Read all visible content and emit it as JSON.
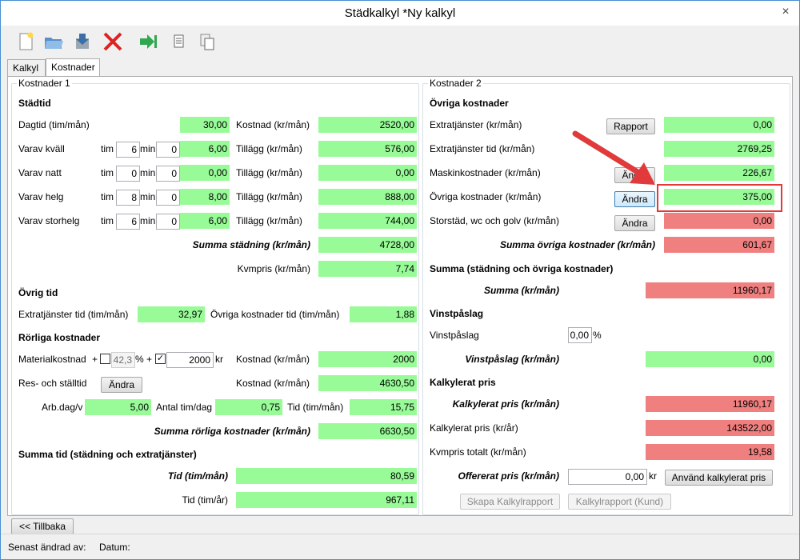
{
  "window": {
    "title": "Städkalkyl *Ny kalkyl",
    "close": "×"
  },
  "tabs": [
    "Kalkyl",
    "Kostnader"
  ],
  "left": {
    "group_title": "Kostnader 1",
    "stadtid": {
      "heading": "Städtid",
      "dagtid_label": "Dagtid (tim/mån)",
      "dagtid_value": "30,00",
      "kostnad_label": "Kostnad (kr/mån)",
      "kostnad_value": "2520,00",
      "tim": "tim",
      "min": "min",
      "tillagg_label": "Tillägg (kr/mån)",
      "rows": [
        {
          "label": "Varav kväll",
          "tim": "6",
          "min": "0",
          "hours": "6,00",
          "tillagg": "576,00"
        },
        {
          "label": "Varav natt",
          "tim": "0",
          "min": "0",
          "hours": "0,00",
          "tillagg": "0,00"
        },
        {
          "label": "Varav helg",
          "tim": "8",
          "min": "0",
          "hours": "8,00",
          "tillagg": "888,00"
        },
        {
          "label": "Varav storhelg",
          "tim": "6",
          "min": "0",
          "hours": "6,00",
          "tillagg": "744,00"
        }
      ],
      "summa_label": "Summa städning (kr/mån)",
      "summa_value": "4728,00",
      "kvmpris_label": "Kvmpris (kr/mån)",
      "kvmpris_value": "7,74"
    },
    "ovrig_tid": {
      "heading": "Övrig tid",
      "extra_label": "Extratjänster tid (tim/mån)",
      "extra_value": "32,97",
      "ovriga_label": "Övriga kostnader tid (tim/mån)",
      "ovriga_value": "1,88"
    },
    "rorliga": {
      "heading": "Rörliga kostnader",
      "material_label": "Materialkostnad",
      "plus": "+",
      "percent_value": "42,3",
      "percent_sign": "%",
      "check_mark": "✓",
      "amount_value": "2000",
      "kr": "kr",
      "kostnad_label": "Kostnad (kr/mån)",
      "kostnad_value": "2000",
      "res_label": "Res- och ställtid",
      "andra": "Ändra",
      "kostnad2_value": "4630,50",
      "arbdag_label": "Arb.dag/v",
      "arbdag_value": "5,00",
      "antal_label": "Antal tim/dag",
      "antal_value": "0,75",
      "tid_label": "Tid (tim/mån)",
      "tid_value": "15,75",
      "summa_label": "Summa rörliga kostnader (kr/mån)",
      "summa_value": "6630,50"
    },
    "summa_tid": {
      "heading": "Summa tid (städning och extratjänster)",
      "tid_man_label": "Tid (tim/mån)",
      "tid_man_value": "80,59",
      "tid_ar_label": "Tid (tim/år)",
      "tid_ar_value": "967,11"
    }
  },
  "right": {
    "group_title": "Kostnader 2",
    "ovriga": {
      "heading": "Övriga kostnader",
      "rows": [
        {
          "label": "Extratjänster (kr/mån)",
          "button": "Rapport",
          "value": "0,00",
          "color": "green"
        },
        {
          "label": "Extratjänster tid (kr/mån)",
          "button": "",
          "value": "2769,25",
          "color": "green"
        },
        {
          "label": "Maskinkostnader (kr/mån)",
          "button": "Ändra",
          "value": "226,67",
          "color": "green"
        },
        {
          "label": "Övriga kostnader (kr/mån)",
          "button": "Ändra",
          "value": "375,00",
          "color": "green"
        },
        {
          "label": "Storstäd, wc och golv (kr/mån)",
          "button": "Ändra",
          "value": "0,00",
          "color": "red"
        }
      ],
      "summa_label": "Summa övriga kostnader (kr/mån)",
      "summa_value": "601,67"
    },
    "summa_all": {
      "heading": "Summa (städning och övriga kostnader)",
      "label": "Summa (kr/mån)",
      "value": "11960,17"
    },
    "vinst": {
      "heading": "Vinstpåslag",
      "label": "Vinstpåslag",
      "input_value": "0,00",
      "percent": "%",
      "sum_label": "Vinstpåslag (kr/mån)",
      "sum_value": "0,00"
    },
    "kalkylerat": {
      "heading": "Kalkylerat pris",
      "man_label": "Kalkylerat pris (kr/mån)",
      "man_value": "11960,17",
      "ar_label": "Kalkylerat pris (kr/år)",
      "ar_value": "143522,00",
      "kvm_label": "Kvmpris totalt (kr/mån)",
      "kvm_value": "19,58",
      "offer_label": "Offererat pris (kr/mån)",
      "offer_value": "0,00",
      "kr": "kr",
      "use_button": "Använd kalkylerat pris"
    },
    "buttons": {
      "skapa": "Skapa Kalkylrapport",
      "kund": "Kalkylrapport (Kund)"
    }
  },
  "back_button": "<< Tillbaka",
  "status": {
    "senast": "Senast ändrad av:",
    "datum": "Datum:"
  },
  "colors": {
    "green": "#98fb98",
    "red": "#f08080",
    "annotation": "#e03a3a"
  }
}
